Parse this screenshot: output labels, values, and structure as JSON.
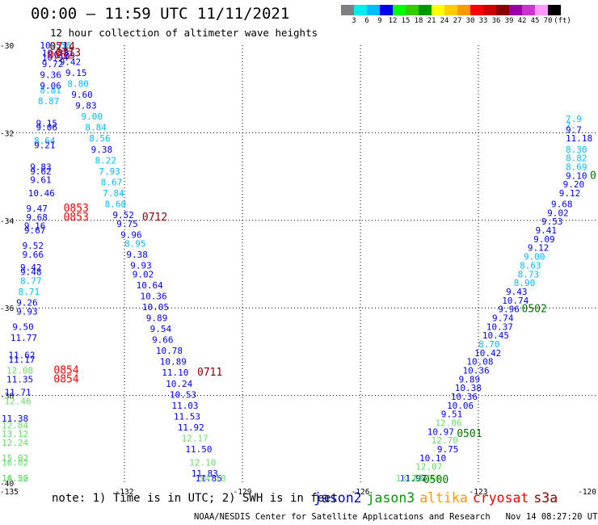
{
  "title": "00:00 — 11:59 UTC 11/11/2021",
  "subtitle": "12 hour collection of altimeter wave heights",
  "colorbar": {
    "colors": [
      "#7f7f7f",
      "#00eeee",
      "#00bbff",
      "#0000ee",
      "#00ff00",
      "#33cc00",
      "#009900",
      "#ffff00",
      "#ffcc00",
      "#ff9900",
      "#ff0000",
      "#cc0000",
      "#880000",
      "#9900aa",
      "#cc33cc",
      "#ff99ff",
      "#000000"
    ],
    "labels": [
      "3",
      "6",
      "9",
      "12",
      "15",
      "18",
      "21",
      "24",
      "27",
      "30",
      "33",
      "36",
      "39",
      "42",
      "45",
      "70",
      "(ft)"
    ]
  },
  "axes": {
    "x_ticks": [
      "-135",
      "-132",
      "-129",
      "-126",
      "-123",
      "-120"
    ],
    "y_ticks": [
      "-30",
      "-32",
      "-34",
      "-36",
      "-38",
      "-40"
    ],
    "lon_range": [
      -135,
      -120
    ],
    "lat_range": [
      -40,
      -30
    ]
  },
  "notes": "note:  1) Time is in UTC; 2) SWH is in feet",
  "legend": [
    {
      "name": "jason2",
      "color": "#0000cc"
    },
    {
      "name": "jason3",
      "color": "#009900"
    },
    {
      "name": "altika",
      "color": "#ff9900"
    },
    {
      "name": "cryosat",
      "color": "#ee0000"
    },
    {
      "name": "s3a",
      "color": "#880000"
    }
  ],
  "footer": "NOAA/NESDIS Center for Satellite Applications and Research   Nov 14 08:27:20 UTC 2021",
  "chart_data": {
    "type": "scatter",
    "xlim": [
      -135,
      -120
    ],
    "ylim": [
      -40,
      -30
    ],
    "grid": true,
    "points": [
      {
        "lon": -134.15,
        "lat": -30.0,
        "v": "10.53",
        "c": "#0000ee"
      },
      {
        "lon": -133.9,
        "lat": -30.0,
        "v": "8.58",
        "c": "#00bbff"
      },
      {
        "lon": -134.1,
        "lat": -30.25,
        "v": "10.58",
        "c": "#0000ee"
      },
      {
        "lon": -133.8,
        "lat": -30.3,
        "v": "9.09",
        "c": "#0000ee"
      },
      {
        "lon": -134.1,
        "lat": -30.35,
        "v": "10.94",
        "c": "#0000ee"
      },
      {
        "lon": -134.1,
        "lat": -30.5,
        "v": "9.72",
        "c": "#0000ee"
      },
      {
        "lon": -133.65,
        "lat": -30.45,
        "v": "9.42",
        "c": "#0000ee"
      },
      {
        "lon": -133.5,
        "lat": -30.7,
        "v": "9.15",
        "c": "#0000ee"
      },
      {
        "lon": -134.15,
        "lat": -30.75,
        "v": "9.36",
        "c": "#0000ee"
      },
      {
        "lon": -133.45,
        "lat": -30.95,
        "v": "8.80",
        "c": "#00bbff"
      },
      {
        "lon": -134.15,
        "lat": -31.0,
        "v": "9.06",
        "c": "#0000ee"
      },
      {
        "lon": -134.15,
        "lat": -31.1,
        "v": "8.81",
        "c": "#00bbff"
      },
      {
        "lon": -133.35,
        "lat": -31.2,
        "v": "9.60",
        "c": "#0000ee"
      },
      {
        "lon": -134.2,
        "lat": -31.35,
        "v": "8.87",
        "c": "#00bbff"
      },
      {
        "lon": -133.25,
        "lat": -31.45,
        "v": "9.83",
        "c": "#0000ee"
      },
      {
        "lon": -133.1,
        "lat": -31.7,
        "v": "9.00",
        "c": "#00bbff"
      },
      {
        "lon": -134.25,
        "lat": -31.85,
        "v": "9.15",
        "c": "#0000ee"
      },
      {
        "lon": -134.25,
        "lat": -31.95,
        "v": "9.06",
        "c": "#0000ee"
      },
      {
        "lon": -133.0,
        "lat": -31.95,
        "v": "8.84",
        "c": "#00bbff"
      },
      {
        "lon": -132.9,
        "lat": -32.2,
        "v": "8.56",
        "c": "#00bbff"
      },
      {
        "lon": -134.3,
        "lat": -32.25,
        "v": "8.64",
        "c": "#00bbff"
      },
      {
        "lon": -134.3,
        "lat": -32.35,
        "v": "9.21",
        "c": "#0000ee"
      },
      {
        "lon": -132.85,
        "lat": -32.45,
        "v": "9.38",
        "c": "#0000ee"
      },
      {
        "lon": -132.75,
        "lat": -32.7,
        "v": "8.22",
        "c": "#00bbff"
      },
      {
        "lon": -134.4,
        "lat": -32.85,
        "v": "9.83",
        "c": "#0000ee"
      },
      {
        "lon": -134.4,
        "lat": -32.95,
        "v": "9.62",
        "c": "#0000ee"
      },
      {
        "lon": -132.65,
        "lat": -32.95,
        "v": "7.93",
        "c": "#00bbff"
      },
      {
        "lon": -134.4,
        "lat": -33.15,
        "v": "9.61",
        "c": "#0000ee"
      },
      {
        "lon": -132.6,
        "lat": -33.2,
        "v": "8.67",
        "c": "#00bbff"
      },
      {
        "lon": -132.55,
        "lat": -33.45,
        "v": "7.84",
        "c": "#00bbff"
      },
      {
        "lon": -134.45,
        "lat": -33.45,
        "v": "10.46",
        "c": "#0000ee"
      },
      {
        "lon": -132.5,
        "lat": -33.7,
        "v": "8.60",
        "c": "#00bbff"
      },
      {
        "lon": -134.5,
        "lat": -33.8,
        "v": "9.47",
        "c": "#0000ee"
      },
      {
        "lon": -134.5,
        "lat": -34.0,
        "v": "9.68",
        "c": "#0000ee"
      },
      {
        "lon": -132.3,
        "lat": -33.95,
        "v": "9.52",
        "c": "#0000ee"
      },
      {
        "lon": -132.2,
        "lat": -34.15,
        "v": "9.75",
        "c": "#0000ee"
      },
      {
        "lon": -134.55,
        "lat": -34.2,
        "v": "9.16",
        "c": "#0000ee"
      },
      {
        "lon": -134.55,
        "lat": -34.3,
        "v": "9.67",
        "c": "#0000ee"
      },
      {
        "lon": -132.1,
        "lat": -34.4,
        "v": "9.96",
        "c": "#0000ee"
      },
      {
        "lon": -132.0,
        "lat": -34.6,
        "v": "8.95",
        "c": "#00bbff"
      },
      {
        "lon": -134.6,
        "lat": -34.65,
        "v": "9.52",
        "c": "#0000ee"
      },
      {
        "lon": -134.6,
        "lat": -34.85,
        "v": "9.66",
        "c": "#0000ee"
      },
      {
        "lon": -131.95,
        "lat": -34.85,
        "v": "9.38",
        "c": "#0000ee"
      },
      {
        "lon": -131.85,
        "lat": -35.1,
        "v": "9.93",
        "c": "#0000ee"
      },
      {
        "lon": -134.65,
        "lat": -35.15,
        "v": "9.42",
        "c": "#0000ee"
      },
      {
        "lon": -134.65,
        "lat": -35.25,
        "v": "9.48",
        "c": "#0000ee"
      },
      {
        "lon": -131.8,
        "lat": -35.3,
        "v": "9.02",
        "c": "#0000ee"
      },
      {
        "lon": -134.65,
        "lat": -35.45,
        "v": "8.77",
        "c": "#00bbff"
      },
      {
        "lon": -131.7,
        "lat": -35.55,
        "v": "10.64",
        "c": "#0000ee"
      },
      {
        "lon": -134.7,
        "lat": -35.7,
        "v": "8.71",
        "c": "#00bbff"
      },
      {
        "lon": -131.6,
        "lat": -35.8,
        "v": "10.36",
        "c": "#0000ee"
      },
      {
        "lon": -134.75,
        "lat": -35.95,
        "v": "9.26",
        "c": "#0000ee"
      },
      {
        "lon": -131.55,
        "lat": -36.05,
        "v": "10.05",
        "c": "#0000ee"
      },
      {
        "lon": -134.75,
        "lat": -36.15,
        "v": "9.93",
        "c": "#0000ee"
      },
      {
        "lon": -131.45,
        "lat": -36.3,
        "v": "9.89",
        "c": "#0000ee"
      },
      {
        "lon": -134.85,
        "lat": -36.5,
        "v": "9.50",
        "c": "#0000ee"
      },
      {
        "lon": -131.35,
        "lat": -36.55,
        "v": "9.54",
        "c": "#0000ee"
      },
      {
        "lon": -134.9,
        "lat": -36.75,
        "v": "11.77",
        "c": "#0000ee"
      },
      {
        "lon": -131.3,
        "lat": -36.8,
        "v": "9.66",
        "c": "#0000ee"
      },
      {
        "lon": -131.2,
        "lat": -37.05,
        "v": "10.78",
        "c": "#0000ee"
      },
      {
        "lon": -134.95,
        "lat": -37.15,
        "v": "11.62",
        "c": "#0000ee"
      },
      {
        "lon": -134.95,
        "lat": -37.25,
        "v": "11.17",
        "c": "#0000ee"
      },
      {
        "lon": -131.1,
        "lat": -37.3,
        "v": "10.89",
        "c": "#0000ee"
      },
      {
        "lon": -135.0,
        "lat": -37.5,
        "v": "12.08",
        "c": "#66dd66"
      },
      {
        "lon": -131.05,
        "lat": -37.55,
        "v": "11.10",
        "c": "#0000ee"
      },
      {
        "lon": -135.0,
        "lat": -37.7,
        "v": "11.35",
        "c": "#0000ee"
      },
      {
        "lon": -130.95,
        "lat": -37.8,
        "v": "10.24",
        "c": "#0000ee"
      },
      {
        "lon": -135.05,
        "lat": -38.0,
        "v": "11.71",
        "c": "#0000ee"
      },
      {
        "lon": -130.85,
        "lat": -38.05,
        "v": "10.53",
        "c": "#0000ee"
      },
      {
        "lon": -135.05,
        "lat": -38.2,
        "v": "12.46",
        "c": "#66dd66"
      },
      {
        "lon": -130.8,
        "lat": -38.3,
        "v": "11.03",
        "c": "#0000ee"
      },
      {
        "lon": -130.75,
        "lat": -38.55,
        "v": "11.53",
        "c": "#0000ee"
      },
      {
        "lon": -135.15,
        "lat": -38.6,
        "v": "11.38",
        "c": "#0000ee"
      },
      {
        "lon": -135.15,
        "lat": -38.75,
        "v": "12.84",
        "c": "#66dd66"
      },
      {
        "lon": -130.65,
        "lat": -38.8,
        "v": "11.92",
        "c": "#0000ee"
      },
      {
        "lon": -135.15,
        "lat": -38.95,
        "v": "13.12",
        "c": "#66dd66"
      },
      {
        "lon": -130.55,
        "lat": -39.05,
        "v": "12.17",
        "c": "#66dd66"
      },
      {
        "lon": -135.15,
        "lat": -39.15,
        "v": "12.24",
        "c": "#66dd66"
      },
      {
        "lon": -130.45,
        "lat": -39.3,
        "v": "11.50",
        "c": "#0000ee"
      },
      {
        "lon": -135.2,
        "lat": -39.5,
        "v": "15.02",
        "c": "#66dd66"
      },
      {
        "lon": -135.2,
        "lat": -39.6,
        "v": "16.02",
        "c": "#66dd66"
      },
      {
        "lon": -130.35,
        "lat": -39.6,
        "v": "12.10",
        "c": "#66dd66"
      },
      {
        "lon": -130.3,
        "lat": -39.85,
        "v": "11.83",
        "c": "#0000ee"
      },
      {
        "lon": -135.25,
        "lat": -40.05,
        "v": "14.22",
        "c": "#66dd66"
      },
      {
        "lon": -135.25,
        "lat": -40.15,
        "v": "16.50",
        "c": "#66dd66"
      },
      {
        "lon": -130.2,
        "lat": -40.1,
        "v": "11.85",
        "c": "#0000ee"
      },
      {
        "lon": -130.1,
        "lat": -40.3,
        "v": "14.70",
        "c": "#66dd66"
      },
      {
        "lon": -120.15,
        "lat": -31.75,
        "v": "7.9",
        "c": "#00bbff"
      },
      {
        "lon": -120.05,
        "lat": -31.9,
        "v": "7.",
        "c": "#00bbff"
      },
      {
        "lon": -120.3,
        "lat": -32.0,
        "v": "9.7",
        "c": "#0000ee"
      },
      {
        "lon": -120.35,
        "lat": -32.2,
        "v": "11.18",
        "c": "#0000ee"
      },
      {
        "lon": -120.4,
        "lat": -32.45,
        "v": "8.30",
        "c": "#00bbff"
      },
      {
        "lon": -120.5,
        "lat": -32.65,
        "v": "8.82",
        "c": "#00bbff"
      },
      {
        "lon": -120.6,
        "lat": -32.85,
        "v": "8.69",
        "c": "#00bbff"
      },
      {
        "lon": -120.75,
        "lat": -33.05,
        "v": "9.10",
        "c": "#0000ee"
      },
      {
        "lon": -120.85,
        "lat": -33.25,
        "v": "9.20",
        "c": "#0000ee"
      },
      {
        "lon": -120.95,
        "lat": -33.45,
        "v": "9.12",
        "c": "#0000ee"
      },
      {
        "lon": -121.15,
        "lat": -33.7,
        "v": "9.68",
        "c": "#0000ee"
      },
      {
        "lon": -121.25,
        "lat": -33.9,
        "v": "9.02",
        "c": "#0000ee"
      },
      {
        "lon": -121.4,
        "lat": -34.1,
        "v": "9.53",
        "c": "#0000ee"
      },
      {
        "lon": -121.55,
        "lat": -34.3,
        "v": "9.41",
        "c": "#0000ee"
      },
      {
        "lon": -121.6,
        "lat": -34.5,
        "v": "9.09",
        "c": "#0000ee"
      },
      {
        "lon": -121.75,
        "lat": -34.7,
        "v": "9.12",
        "c": "#0000ee"
      },
      {
        "lon": -121.85,
        "lat": -34.9,
        "v": "9.00",
        "c": "#00bbff"
      },
      {
        "lon": -121.95,
        "lat": -35.1,
        "v": "8.63",
        "c": "#00bbff"
      },
      {
        "lon": -122.0,
        "lat": -35.3,
        "v": "8.73",
        "c": "#00bbff"
      },
      {
        "lon": -122.1,
        "lat": -35.5,
        "v": "8.90",
        "c": "#00bbff"
      },
      {
        "lon": -122.3,
        "lat": -35.7,
        "v": "9.43",
        "c": "#0000ee"
      },
      {
        "lon": -122.4,
        "lat": -35.9,
        "v": "10.74",
        "c": "#0000ee"
      },
      {
        "lon": -122.5,
        "lat": -36.1,
        "v": "9.96",
        "c": "#0000ee"
      },
      {
        "lon": -122.65,
        "lat": -36.3,
        "v": "9.74",
        "c": "#0000ee"
      },
      {
        "lon": -122.8,
        "lat": -36.5,
        "v": "10.37",
        "c": "#0000ee"
      },
      {
        "lon": -122.9,
        "lat": -36.7,
        "v": "10.45",
        "c": "#0000ee"
      },
      {
        "lon": -123.0,
        "lat": -36.9,
        "v": "8.70",
        "c": "#00bbff"
      },
      {
        "lon": -123.1,
        "lat": -37.1,
        "v": "10.42",
        "c": "#0000ee"
      },
      {
        "lon": -123.3,
        "lat": -37.3,
        "v": "10.08",
        "c": "#0000ee"
      },
      {
        "lon": -123.4,
        "lat": -37.5,
        "v": "10.36",
        "c": "#0000ee"
      },
      {
        "lon": -123.5,
        "lat": -37.7,
        "v": "9.89",
        "c": "#0000ee"
      },
      {
        "lon": -123.6,
        "lat": -37.9,
        "v": "10.38",
        "c": "#0000ee"
      },
      {
        "lon": -123.7,
        "lat": -38.1,
        "v": "10.36",
        "c": "#0000ee"
      },
      {
        "lon": -123.8,
        "lat": -38.3,
        "v": "10.06",
        "c": "#0000ee"
      },
      {
        "lon": -123.95,
        "lat": -38.5,
        "v": "9.51",
        "c": "#0000ee"
      },
      {
        "lon": -124.1,
        "lat": -38.7,
        "v": "12.06",
        "c": "#66dd66"
      },
      {
        "lon": -124.3,
        "lat": -38.9,
        "v": "10.97",
        "c": "#0000ee"
      },
      {
        "lon": -124.2,
        "lat": -39.1,
        "v": "12.70",
        "c": "#66dd66"
      },
      {
        "lon": -124.05,
        "lat": -39.3,
        "v": "9.75",
        "c": "#0000ee"
      },
      {
        "lon": -124.5,
        "lat": -39.5,
        "v": "10.10",
        "c": "#0000ee"
      },
      {
        "lon": -124.6,
        "lat": -39.7,
        "v": "12.07",
        "c": "#66dd66"
      },
      {
        "lon": -124.65,
        "lat": -39.95,
        "v": "15.49",
        "c": "#66dd66"
      },
      {
        "lon": -124.85,
        "lat": -40.15,
        "v": "12.09",
        "c": "#66dd66"
      },
      {
        "lon": -125.0,
        "lat": -40.35,
        "v": "11.97",
        "c": "#0000ee"
      },
      {
        "lon": -125.1,
        "lat": -40.55,
        "v": "13.78",
        "c": "#66dd66"
      }
    ],
    "time_labels": [
      {
        "lon": -133.9,
        "lat": -30.0,
        "t": "0714",
        "c": "#880000"
      },
      {
        "lon": -133.75,
        "lat": -30.25,
        "t": "0713",
        "c": "#880000"
      },
      {
        "lon": -133.95,
        "lat": -30.3,
        "t": "0852",
        "c": "#ee0000"
      },
      {
        "lon": -133.55,
        "lat": -33.8,
        "t": "0853",
        "c": "#ee0000"
      },
      {
        "lon": -133.55,
        "lat": -34.0,
        "t": "0853",
        "c": "#ee0000"
      },
      {
        "lon": -131.55,
        "lat": -34.0,
        "t": "0712",
        "c": "#880000"
      },
      {
        "lon": -133.8,
        "lat": -37.5,
        "t": "0854",
        "c": "#ee0000"
      },
      {
        "lon": -133.8,
        "lat": -37.7,
        "t": "0854",
        "c": "#ee0000"
      },
      {
        "lon": -130.15,
        "lat": -37.55,
        "t": "0711",
        "c": "#880000"
      },
      {
        "lon": -121.9,
        "lat": -36.1,
        "t": "0502",
        "c": "#007700"
      },
      {
        "lon": -123.55,
        "lat": -38.95,
        "t": "0501",
        "c": "#007700"
      },
      {
        "lon": -124.4,
        "lat": -40.55,
        "t": "0500",
        "c": "#007700"
      },
      {
        "lon": -120.05,
        "lat": -33.05,
        "t": "0",
        "c": "#007700"
      }
    ]
  }
}
